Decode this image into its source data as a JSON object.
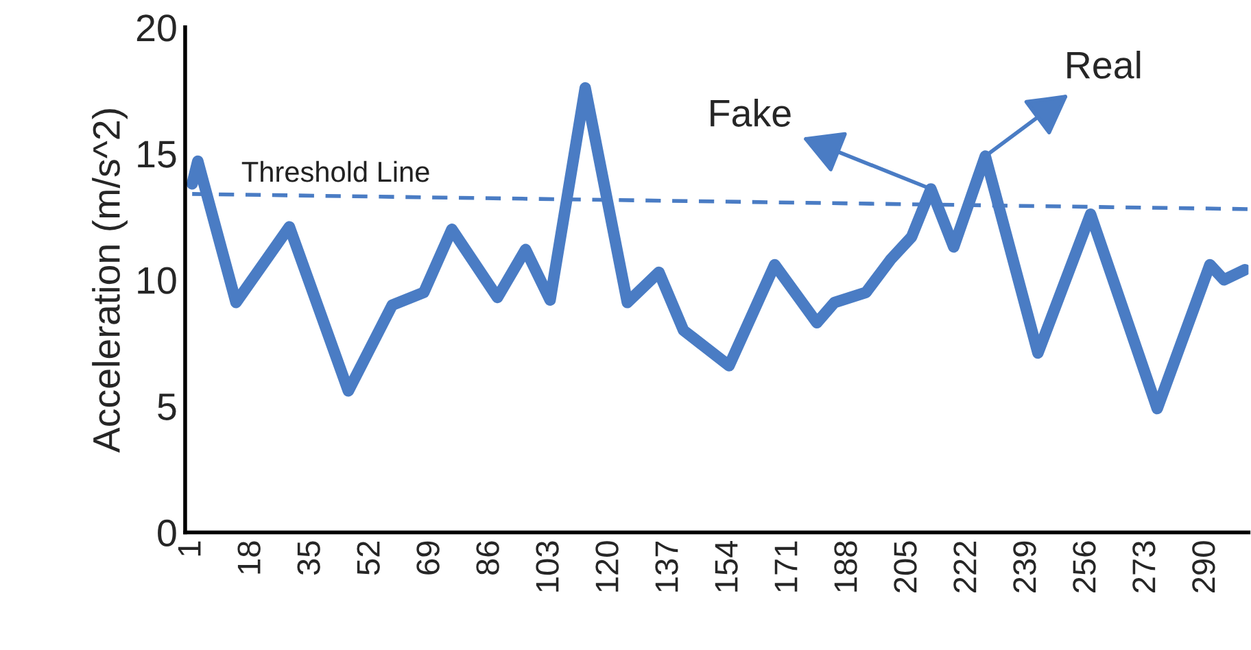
{
  "chart_data": {
    "type": "line",
    "ylabel": "Acceleration (m/s^2)",
    "xlim": [
      -1,
      302
    ],
    "xticks": [
      1,
      18,
      35,
      52,
      69,
      86,
      103,
      120,
      137,
      154,
      171,
      188,
      205,
      222,
      239,
      256,
      273,
      290
    ],
    "ylim": [
      0,
      20
    ],
    "yticks": [
      0,
      5,
      10,
      15,
      20
    ],
    "grid": false,
    "legend": false,
    "series": [
      {
        "color": "#4a7cc4",
        "line_style": "solid",
        "x": [
          1,
          2.6,
          13.5,
          28.7,
          45.5,
          58,
          67,
          75,
          88,
          96,
          103,
          113,
          125,
          134,
          141,
          154,
          167,
          179,
          184,
          193,
          200,
          206,
          211.5,
          218,
          227,
          242,
          257,
          276,
          291,
          295,
          301
        ],
        "values": [
          13.8,
          14.7,
          9.1,
          12.1,
          5.6,
          9.0,
          9.5,
          12.0,
          9.3,
          11.2,
          9.2,
          17.6,
          9.1,
          10.3,
          8.0,
          6.6,
          10.6,
          8.3,
          9.1,
          9.5,
          10.8,
          11.7,
          13.6,
          11.3,
          14.9,
          7.1,
          12.6,
          4.9,
          10.6,
          10.0,
          10.4
        ]
      },
      {
        "name": "Threshold Line",
        "color": "#4a7cc4",
        "line_style": "dashed",
        "x": [
          1,
          302
        ],
        "values": [
          13.4,
          12.8
        ]
      }
    ],
    "annotations": [
      {
        "text": "Fake",
        "x": 211.5,
        "y": 13.6
      },
      {
        "text": "Real",
        "x": 227,
        "y": 14.9
      }
    ]
  }
}
